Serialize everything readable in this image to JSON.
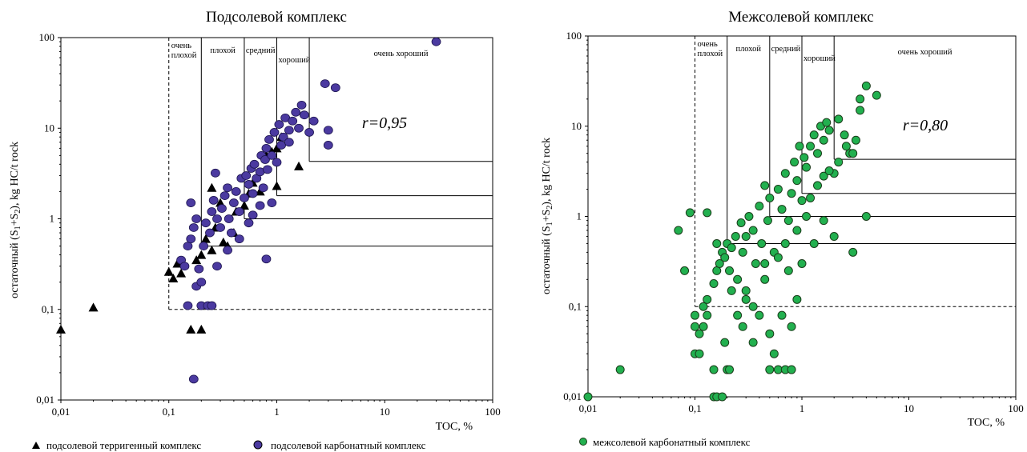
{
  "chart_data": [
    {
      "type": "scatter",
      "title": "Подсолевой комплекс",
      "xlabel": "TOC, %",
      "ylabel_prefix": "остаточный (S",
      "ylabel_sub1": "1",
      "ylabel_mid": "+S",
      "ylabel_sub2": "2",
      "ylabel_suffix": "), kg HC/t rock",
      "x_scale": "log",
      "y_scale": "log",
      "xlim": [
        0.01,
        100
      ],
      "ylim": [
        0.01,
        100
      ],
      "x_ticks": [
        "0,01",
        "0,1",
        "1",
        "10",
        "100"
      ],
      "y_ticks": [
        "0,01",
        "0,1",
        "1",
        "10",
        "100"
      ],
      "zone_labels": [
        "очень",
        "плохой",
        "плохой",
        "средний",
        "хороший",
        "очень хороший"
      ],
      "zone_bounds_toc": [
        0.1,
        0.2,
        0.5,
        1,
        2
      ],
      "zone_bounds_hc": [
        0.1,
        0.5,
        1,
        1.8,
        4.3
      ],
      "correlation": "r=0,95",
      "series": [
        {
          "name": "подсолевой терригенный комплекс",
          "marker": "triangle",
          "color": "#000000",
          "points": [
            [
              0.01,
              0.06
            ],
            [
              0.02,
              0.105
            ],
            [
              0.1,
              0.26
            ],
            [
              0.11,
              0.22
            ],
            [
              0.12,
              0.32
            ],
            [
              0.13,
              0.25
            ],
            [
              0.16,
              0.06
            ],
            [
              0.2,
              0.06
            ],
            [
              0.18,
              0.35
            ],
            [
              0.2,
              0.4
            ],
            [
              0.22,
              0.6
            ],
            [
              0.25,
              0.45
            ],
            [
              0.25,
              2.2
            ],
            [
              0.27,
              0.8
            ],
            [
              0.3,
              1.5
            ],
            [
              0.32,
              0.55
            ],
            [
              0.35,
              0.5
            ],
            [
              0.4,
              0.7
            ],
            [
              0.42,
              1.2
            ],
            [
              0.5,
              1.4
            ],
            [
              0.55,
              1.9
            ],
            [
              0.6,
              2.5
            ],
            [
              0.7,
              2.0
            ],
            [
              0.8,
              5.0
            ],
            [
              0.9,
              5.5
            ],
            [
              1.0,
              2.3
            ],
            [
              1.0,
              6.0
            ],
            [
              1.1,
              8.0
            ],
            [
              1.6,
              3.8
            ]
          ]
        },
        {
          "name": "подсолевой карбонатный комплекс",
          "marker": "ellipse",
          "color": "#4b3aa0",
          "points": [
            [
              0.17,
              0.017
            ],
            [
              0.15,
              0.11
            ],
            [
              0.2,
              0.11
            ],
            [
              0.23,
              0.11
            ],
            [
              0.25,
              0.11
            ],
            [
              0.13,
              0.35
            ],
            [
              0.14,
              0.3
            ],
            [
              0.15,
              0.5
            ],
            [
              0.16,
              0.6
            ],
            [
              0.17,
              0.8
            ],
            [
              0.18,
              1.0
            ],
            [
              0.16,
              1.5
            ],
            [
              0.18,
              0.18
            ],
            [
              0.2,
              0.2
            ],
            [
              0.19,
              0.28
            ],
            [
              0.21,
              0.5
            ],
            [
              0.22,
              0.9
            ],
            [
              0.24,
              0.7
            ],
            [
              0.25,
              1.2
            ],
            [
              0.26,
              1.6
            ],
            [
              0.27,
              3.2
            ],
            [
              0.28,
              1.0
            ],
            [
              0.3,
              0.8
            ],
            [
              0.31,
              1.3
            ],
            [
              0.33,
              1.8
            ],
            [
              0.35,
              2.2
            ],
            [
              0.36,
              1.0
            ],
            [
              0.38,
              0.7
            ],
            [
              0.4,
              1.5
            ],
            [
              0.42,
              2.0
            ],
            [
              0.45,
              1.2
            ],
            [
              0.47,
              2.8
            ],
            [
              0.5,
              1.7
            ],
            [
              0.52,
              3.0
            ],
            [
              0.55,
              2.4
            ],
            [
              0.58,
              3.6
            ],
            [
              0.6,
              1.9
            ],
            [
              0.62,
              4.0
            ],
            [
              0.65,
              2.8
            ],
            [
              0.7,
              3.3
            ],
            [
              0.72,
              5.0
            ],
            [
              0.75,
              2.2
            ],
            [
              0.78,
              4.5
            ],
            [
              0.8,
              6.0
            ],
            [
              0.82,
              3.5
            ],
            [
              0.85,
              7.5
            ],
            [
              0.9,
              5.0
            ],
            [
              0.95,
              9.0
            ],
            [
              1.0,
              4.2
            ],
            [
              1.05,
              11.0
            ],
            [
              1.1,
              6.5
            ],
            [
              1.15,
              8.0
            ],
            [
              1.2,
              13.0
            ],
            [
              1.3,
              9.5
            ],
            [
              1.4,
              12.0
            ],
            [
              1.5,
              15.0
            ],
            [
              1.6,
              10.0
            ],
            [
              1.7,
              18.0
            ],
            [
              1.8,
              14.0
            ],
            [
              2.0,
              9.0
            ],
            [
              2.2,
              12.0
            ],
            [
              3.0,
              9.5
            ],
            [
              3.0,
              6.5
            ],
            [
              2.8,
              31.0
            ],
            [
              3.5,
              28.0
            ],
            [
              30.0,
              90.0
            ],
            [
              0.8,
              0.36
            ],
            [
              0.55,
              0.9
            ],
            [
              0.45,
              0.6
            ],
            [
              0.35,
              0.45
            ],
            [
              0.28,
              0.3
            ],
            [
              0.6,
              1.1
            ],
            [
              0.9,
              1.5
            ],
            [
              1.3,
              7.0
            ],
            [
              0.7,
              1.4
            ]
          ]
        }
      ]
    },
    {
      "type": "scatter",
      "title": "Межсолевой комплекс",
      "xlabel": "TOC, %",
      "ylabel_prefix": "остаточный (S",
      "ylabel_sub1": "1",
      "ylabel_mid": "+S",
      "ylabel_sub2": "2",
      "ylabel_suffix": "), kg HC/t rock",
      "x_scale": "log",
      "y_scale": "log",
      "xlim": [
        0.01,
        100
      ],
      "ylim": [
        0.01,
        100
      ],
      "x_ticks": [
        "0,01",
        "0,1",
        "1",
        "10",
        "100"
      ],
      "y_ticks": [
        "0,01",
        "0,1",
        "1",
        "10",
        "100"
      ],
      "zone_labels": [
        "очень",
        "плохой",
        "плохой",
        "средний",
        "хороший",
        "очень хороший"
      ],
      "zone_bounds_toc": [
        0.1,
        0.2,
        0.5,
        1,
        2
      ],
      "zone_bounds_hc": [
        0.1,
        0.5,
        1,
        1.8,
        4.3
      ],
      "correlation": "r=0,80",
      "series": [
        {
          "name": "межсолевой карбонатный комплекс",
          "marker": "circle",
          "color": "#22b04f",
          "points": [
            [
              0.01,
              0.01
            ],
            [
              0.02,
              0.02
            ],
            [
              0.1,
              0.03
            ],
            [
              0.11,
              0.03
            ],
            [
              0.12,
              0.06
            ],
            [
              0.13,
              0.08
            ],
            [
              0.15,
              0.01
            ],
            [
              0.16,
              0.01
            ],
            [
              0.18,
              0.01
            ],
            [
              0.15,
              0.02
            ],
            [
              0.19,
              0.04
            ],
            [
              0.2,
              0.02
            ],
            [
              0.21,
              0.02
            ],
            [
              0.1,
              0.06
            ],
            [
              0.1,
              0.08
            ],
            [
              0.11,
              0.05
            ],
            [
              0.12,
              0.1
            ],
            [
              0.13,
              0.12
            ],
            [
              0.15,
              0.18
            ],
            [
              0.16,
              0.25
            ],
            [
              0.17,
              0.3
            ],
            [
              0.18,
              0.4
            ],
            [
              0.19,
              0.35
            ],
            [
              0.2,
              0.5
            ],
            [
              0.16,
              0.5
            ],
            [
              0.21,
              0.25
            ],
            [
              0.22,
              0.45
            ],
            [
              0.24,
              0.6
            ],
            [
              0.25,
              0.2
            ],
            [
              0.27,
              0.85
            ],
            [
              0.28,
              0.4
            ],
            [
              0.3,
              0.6
            ],
            [
              0.32,
              1.0
            ],
            [
              0.35,
              0.7
            ],
            [
              0.37,
              0.3
            ],
            [
              0.4,
              1.3
            ],
            [
              0.42,
              0.5
            ],
            [
              0.45,
              2.2
            ],
            [
              0.48,
              0.9
            ],
            [
              0.5,
              1.6
            ],
            [
              0.55,
              0.4
            ],
            [
              0.6,
              2.0
            ],
            [
              0.65,
              1.2
            ],
            [
              0.7,
              3.0
            ],
            [
              0.75,
              0.9
            ],
            [
              0.8,
              1.8
            ],
            [
              0.85,
              4.0
            ],
            [
              0.9,
              2.5
            ],
            [
              0.95,
              6.0
            ],
            [
              1.0,
              1.5
            ],
            [
              1.05,
              4.5
            ],
            [
              1.1,
              3.5
            ],
            [
              1.2,
              6.0
            ],
            [
              1.3,
              8.0
            ],
            [
              1.4,
              5.0
            ],
            [
              1.5,
              10.0
            ],
            [
              1.6,
              7.0
            ],
            [
              1.7,
              11.0
            ],
            [
              1.8,
              9.0
            ],
            [
              2.0,
              3.0
            ],
            [
              2.2,
              12.0
            ],
            [
              2.5,
              8.0
            ],
            [
              2.8,
              5.0
            ],
            [
              3.0,
              5.0
            ],
            [
              3.5,
              15.0
            ],
            [
              3.5,
              20.0
            ],
            [
              4.0,
              28.0
            ],
            [
              5.0,
              22.0
            ],
            [
              0.07,
              0.7
            ],
            [
              0.08,
              0.25
            ],
            [
              0.09,
              1.1
            ],
            [
              0.13,
              1.1
            ],
            [
              0.3,
              0.12
            ],
            [
              0.35,
              0.1
            ],
            [
              0.45,
              0.2
            ],
            [
              0.5,
              0.05
            ],
            [
              0.55,
              0.03
            ],
            [
              0.6,
              0.02
            ],
            [
              0.5,
              0.02
            ],
            [
              0.7,
              0.02
            ],
            [
              0.8,
              0.02
            ],
            [
              0.8,
              0.06
            ],
            [
              1.0,
              0.3
            ],
            [
              1.3,
              0.5
            ],
            [
              1.6,
              0.9
            ],
            [
              2.0,
              0.6
            ],
            [
              3.0,
              0.4
            ],
            [
              4.0,
              1.0
            ],
            [
              0.25,
              0.08
            ],
            [
              0.3,
              0.15
            ],
            [
              0.4,
              0.08
            ],
            [
              0.45,
              0.3
            ],
            [
              0.6,
              0.35
            ],
            [
              0.7,
              0.5
            ],
            [
              0.9,
              0.7
            ],
            [
              1.1,
              1.0
            ],
            [
              1.2,
              1.6
            ],
            [
              1.4,
              2.2
            ],
            [
              1.6,
              2.8
            ],
            [
              1.8,
              3.2
            ],
            [
              2.2,
              4.0
            ],
            [
              2.6,
              6.0
            ],
            [
              3.2,
              7.0
            ],
            [
              0.75,
              0.25
            ],
            [
              0.9,
              0.12
            ],
            [
              0.35,
              0.04
            ],
            [
              0.65,
              0.08
            ],
            [
              0.22,
              0.15
            ],
            [
              0.28,
              0.06
            ]
          ]
        }
      ]
    }
  ]
}
